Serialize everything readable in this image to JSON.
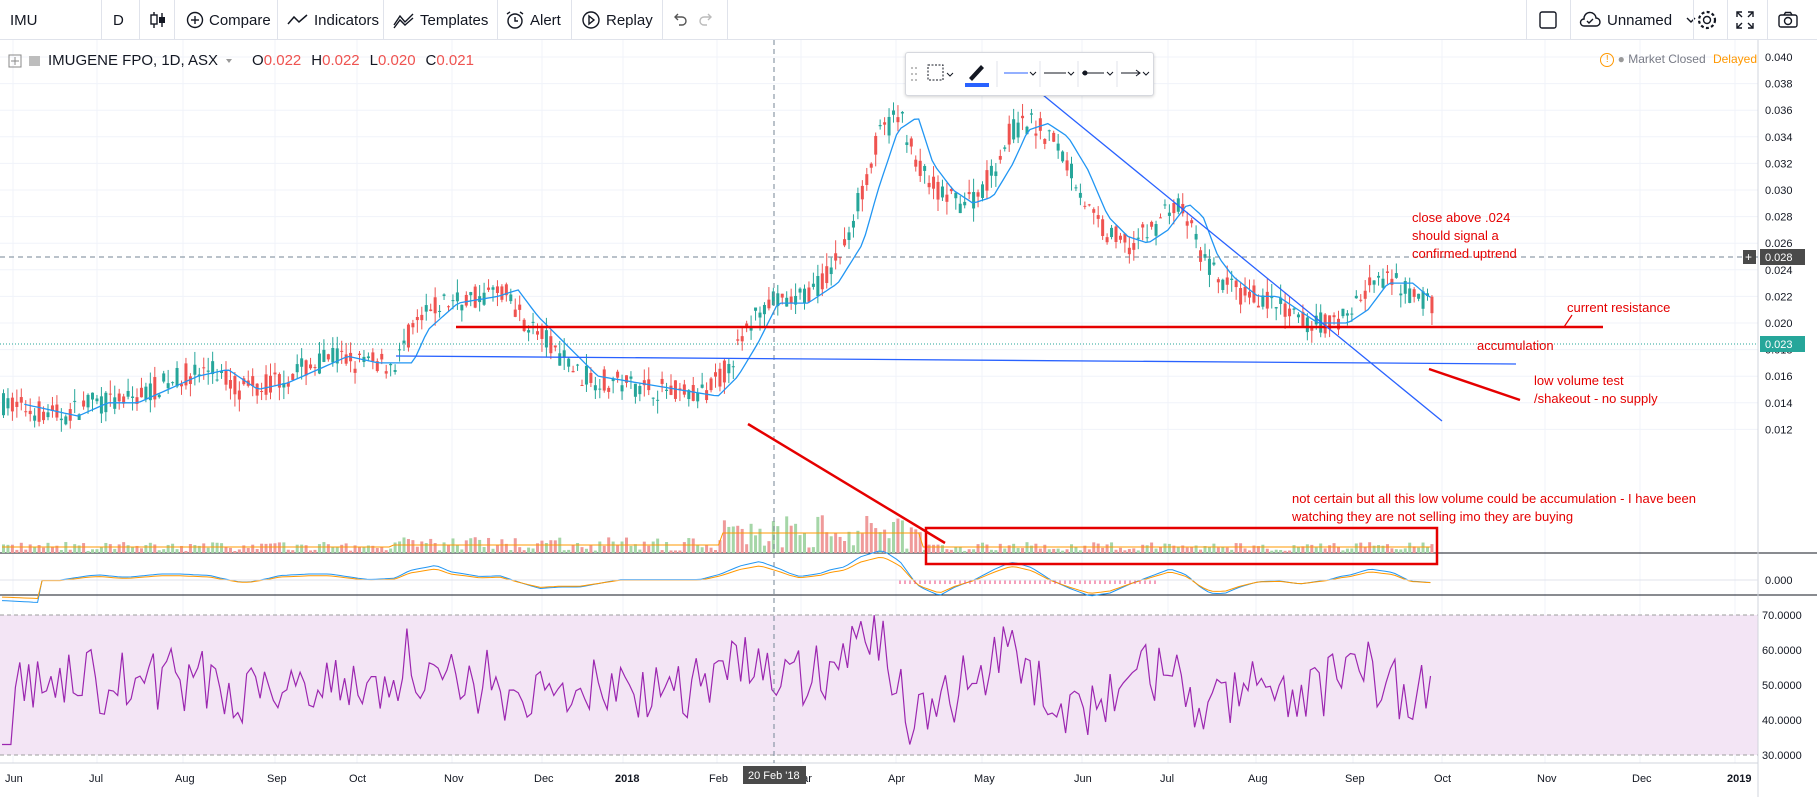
{
  "toolbar": {
    "symbol": "IMU",
    "interval": "D",
    "compare": "Compare",
    "indicators": "Indicators",
    "templates": "Templates",
    "alert": "Alert",
    "replay": "Replay",
    "layout_name": "Unnamed"
  },
  "legend": {
    "title": "IMUGENE FPO, 1D, ASX",
    "open_key": "O",
    "open": "0.022",
    "high_key": "H",
    "high": "0.022",
    "low_key": "L",
    "low": "0.020",
    "close_key": "C",
    "close": "0.021"
  },
  "status": {
    "market": "Market Closed",
    "delayed": "Delayed"
  },
  "colors": {
    "up": "#26a69a",
    "down": "#ef5350",
    "annotation": "#e50000",
    "trendline": "#2962ff",
    "ma": "#2196f3",
    "rsi_line": "#9c27b0",
    "rsi_band": "#f3e5f5",
    "price_tag": "#26a69a"
  },
  "crosshair": {
    "date_label": "20 Feb '18",
    "price_label": "0.028"
  },
  "annotations": {
    "close_above_1": "close above .024",
    "close_above_2": "should signal a",
    "close_above_3": "confirmed uptrend",
    "current_resistance": "current resistance",
    "accumulation": "accumulation",
    "low_volume_1": "low volume test",
    "low_volume_2": "/shakeout - no supply",
    "not_certain_1": "not certain but all this low volume could be accumulation - I have been",
    "not_certain_2": "watching they are not selling imo they are buying"
  },
  "chart_data": {
    "type": "candlestick",
    "price_axis_ticks": [
      "0.040",
      "0.038",
      "0.036",
      "0.034",
      "0.032",
      "0.030",
      "0.028",
      "0.026",
      "0.024",
      "0.022",
      "0.020",
      "0.018",
      "0.016",
      "0.014",
      "0.012",
      "0.000"
    ],
    "last_price_tag": "0.023",
    "rsi_axis_ticks": [
      "70.0000",
      "60.0000",
      "50.0000",
      "40.0000",
      "30.0000"
    ],
    "time_axis_ticks": [
      "Jun",
      "Jul",
      "Aug",
      "Sep",
      "Oct",
      "Nov",
      "Dec",
      "2018",
      "Feb",
      "Mar",
      "Apr",
      "May",
      "Jun",
      "Jul",
      "Aug",
      "Sep",
      "Oct",
      "Nov",
      "Dec",
      "2019"
    ],
    "ylim": [
      0.011,
      0.0405
    ],
    "resistance_level": 0.024,
    "approx_close_path": [
      [
        "Jun 2017",
        0.014
      ],
      [
        "Jul 2017",
        0.014
      ],
      [
        "Aug 2017",
        0.015
      ],
      [
        "Sep 2017",
        0.015
      ],
      [
        "Oct 2017",
        0.017
      ],
      [
        "Nov 2017",
        0.022
      ],
      [
        "Dec 2017",
        0.018
      ],
      [
        "Jan 2018",
        0.015
      ],
      [
        "Feb 2018",
        0.02
      ],
      [
        "Mar 2018",
        0.03
      ],
      [
        "Apr 2018",
        0.035
      ],
      [
        "May 2018",
        0.031
      ],
      [
        "Jun 2018",
        0.027
      ],
      [
        "Jul 2018",
        0.029
      ],
      [
        "Aug 2018",
        0.02
      ],
      [
        "Sep 2018",
        0.022
      ],
      [
        "Oct 2018",
        0.021
      ]
    ]
  }
}
